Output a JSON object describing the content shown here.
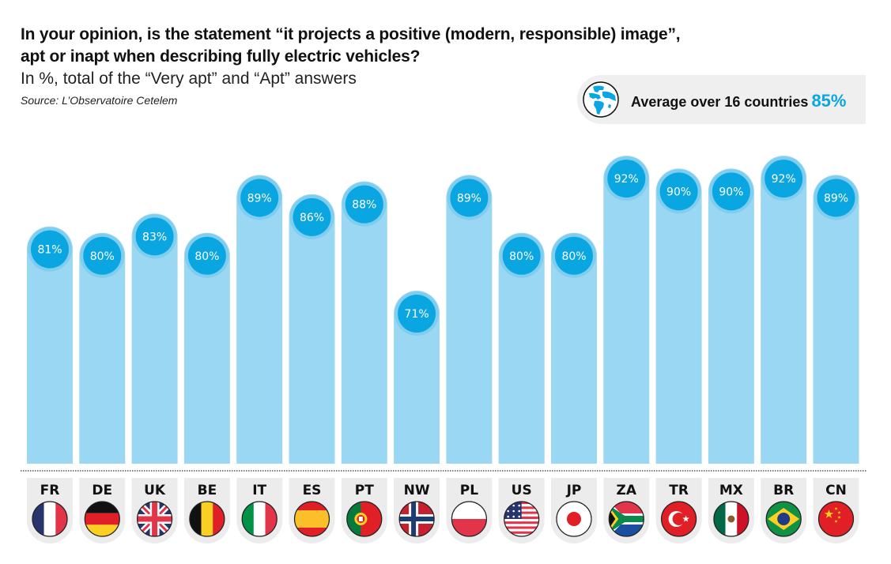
{
  "header": {
    "title_line1": "In your opinion, is the statement “it projects a positive (modern, responsible) image”,",
    "title_line2": "apt or inapt when describing fully electric vehicles?",
    "subtitle": "In %, total of the “Very apt” and “Apt” answers",
    "source": "Source: L’Observatoire Cetelem"
  },
  "average_badge": {
    "icon": "globe-icon",
    "label": "Average over 16 countries",
    "value": "85%",
    "value_color": "#0aa6e1"
  },
  "colors": {
    "bar": "#9ad7f3",
    "bubble": "#0aa6e1",
    "bubble_ring": "#7fcdef",
    "tile": "#ececec",
    "dotted_line": "#555555"
  },
  "chart_data": {
    "type": "bar",
    "title": "In your opinion, is the statement “it projects a positive (modern, responsible) image”, apt or inapt when describing fully electric vehicles?",
    "subtitle": "In %, total of the “Very apt” and “Apt” answers",
    "xlabel": "",
    "ylabel": "",
    "unit": "%",
    "categories": [
      "FR",
      "DE",
      "UK",
      "BE",
      "IT",
      "ES",
      "PT",
      "NW",
      "PL",
      "US",
      "JP",
      "ZA",
      "TR",
      "MX",
      "BR",
      "CN"
    ],
    "flags": [
      "france-flag",
      "germany-flag",
      "uk-flag",
      "belgium-flag",
      "italy-flag",
      "spain-flag",
      "portugal-flag",
      "norway-flag",
      "poland-flag",
      "usa-flag",
      "japan-flag",
      "south-africa-flag",
      "turkey-flag",
      "mexico-flag",
      "brazil-flag",
      "china-flag"
    ],
    "values": [
      81,
      80,
      83,
      80,
      89,
      86,
      88,
      71,
      89,
      80,
      80,
      92,
      90,
      90,
      92,
      89
    ],
    "data_labels": [
      "81%",
      "80%",
      "83%",
      "80%",
      "89%",
      "86%",
      "88%",
      "71%",
      "89%",
      "80%",
      "80%",
      "92%",
      "90%",
      "90%",
      "92%",
      "89%"
    ],
    "average": 85,
    "grid": false,
    "legend": "none"
  }
}
